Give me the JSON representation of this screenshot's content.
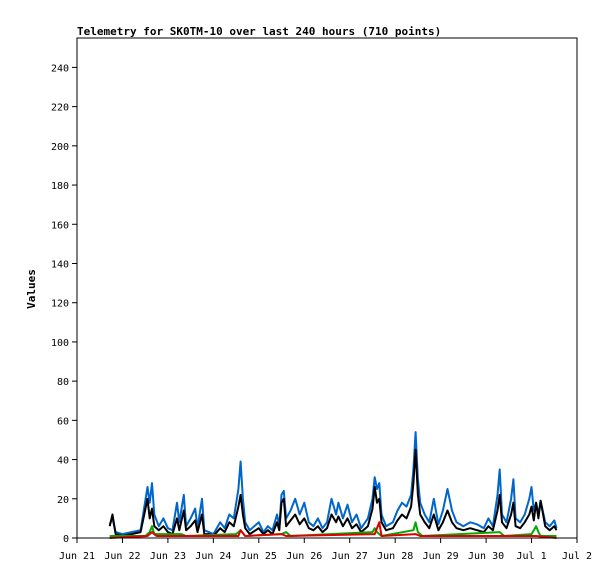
{
  "chart_data": {
    "type": "line",
    "title": "Telemetry for SK0TM-10 over last 240 hours (710 points)",
    "ylabel": "Values",
    "xlabel": "",
    "ylim": [
      0,
      255
    ],
    "yticks": [
      0,
      20,
      40,
      60,
      80,
      100,
      120,
      140,
      160,
      180,
      200,
      220,
      240
    ],
    "x_tick_labels": [
      "Jun 21",
      "Jun 22",
      "Jun 23",
      "Jun 24",
      "Jun 25",
      "Jun 26",
      "Jun 27",
      "Jun 28",
      "Jun 29",
      "Jun 30",
      "Jul 1",
      "Jul 2"
    ],
    "xlim_days": [
      0,
      11
    ],
    "grid": false,
    "legend": "none",
    "series": [
      {
        "color": "#0066cc",
        "width": 2,
        "points": [
          [
            0.72,
            7
          ],
          [
            0.78,
            10
          ],
          [
            0.85,
            3
          ],
          [
            1.0,
            2
          ],
          [
            1.2,
            3
          ],
          [
            1.4,
            4
          ],
          [
            1.55,
            26
          ],
          [
            1.6,
            18
          ],
          [
            1.65,
            28
          ],
          [
            1.7,
            12
          ],
          [
            1.8,
            6
          ],
          [
            1.9,
            10
          ],
          [
            2.0,
            5
          ],
          [
            2.1,
            4
          ],
          [
            2.2,
            18
          ],
          [
            2.25,
            8
          ],
          [
            2.35,
            22
          ],
          [
            2.4,
            6
          ],
          [
            2.5,
            10
          ],
          [
            2.6,
            15
          ],
          [
            2.65,
            5
          ],
          [
            2.75,
            20
          ],
          [
            2.8,
            4
          ],
          [
            2.9,
            3
          ],
          [
            3.0,
            2
          ],
          [
            3.15,
            8
          ],
          [
            3.25,
            5
          ],
          [
            3.35,
            12
          ],
          [
            3.45,
            10
          ],
          [
            3.55,
            25
          ],
          [
            3.6,
            39
          ],
          [
            3.65,
            20
          ],
          [
            3.7,
            8
          ],
          [
            3.8,
            4
          ],
          [
            4.0,
            8
          ],
          [
            4.1,
            3
          ],
          [
            4.2,
            6
          ],
          [
            4.3,
            4
          ],
          [
            4.4,
            12
          ],
          [
            4.45,
            6
          ],
          [
            4.5,
            22
          ],
          [
            4.55,
            24
          ],
          [
            4.6,
            10
          ],
          [
            4.7,
            14
          ],
          [
            4.8,
            20
          ],
          [
            4.9,
            12
          ],
          [
            5.0,
            18
          ],
          [
            5.1,
            8
          ],
          [
            5.2,
            6
          ],
          [
            5.3,
            10
          ],
          [
            5.4,
            5
          ],
          [
            5.5,
            8
          ],
          [
            5.6,
            20
          ],
          [
            5.7,
            12
          ],
          [
            5.75,
            18
          ],
          [
            5.85,
            10
          ],
          [
            5.95,
            17
          ],
          [
            6.05,
            8
          ],
          [
            6.15,
            12
          ],
          [
            6.25,
            5
          ],
          [
            6.4,
            10
          ],
          [
            6.5,
            20
          ],
          [
            6.55,
            31
          ],
          [
            6.6,
            25
          ],
          [
            6.65,
            28
          ],
          [
            6.7,
            12
          ],
          [
            6.8,
            6
          ],
          [
            6.95,
            8
          ],
          [
            7.05,
            14
          ],
          [
            7.15,
            18
          ],
          [
            7.25,
            16
          ],
          [
            7.35,
            22
          ],
          [
            7.4,
            35
          ],
          [
            7.45,
            54
          ],
          [
            7.5,
            30
          ],
          [
            7.55,
            18
          ],
          [
            7.65,
            12
          ],
          [
            7.75,
            8
          ],
          [
            7.85,
            20
          ],
          [
            7.95,
            7
          ],
          [
            8.05,
            14
          ],
          [
            8.15,
            25
          ],
          [
            8.25,
            14
          ],
          [
            8.35,
            8
          ],
          [
            8.5,
            6
          ],
          [
            8.65,
            8
          ],
          [
            8.8,
            7
          ],
          [
            8.95,
            5
          ],
          [
            9.05,
            10
          ],
          [
            9.15,
            6
          ],
          [
            9.25,
            22
          ],
          [
            9.3,
            35
          ],
          [
            9.35,
            12
          ],
          [
            9.45,
            8
          ],
          [
            9.55,
            20
          ],
          [
            9.6,
            30
          ],
          [
            9.65,
            10
          ],
          [
            9.75,
            8
          ],
          [
            9.85,
            12
          ],
          [
            9.95,
            20
          ],
          [
            10.0,
            26
          ],
          [
            10.05,
            14
          ],
          [
            10.1,
            18
          ],
          [
            10.15,
            12
          ],
          [
            10.2,
            19
          ],
          [
            10.3,
            8
          ],
          [
            10.4,
            6
          ],
          [
            10.5,
            9
          ],
          [
            10.55,
            5
          ]
        ]
      },
      {
        "color": "#000000",
        "width": 2,
        "points": [
          [
            0.72,
            6
          ],
          [
            0.78,
            12
          ],
          [
            0.85,
            2
          ],
          [
            1.0,
            1
          ],
          [
            1.2,
            2
          ],
          [
            1.4,
            3
          ],
          [
            1.55,
            20
          ],
          [
            1.6,
            10
          ],
          [
            1.65,
            15
          ],
          [
            1.7,
            6
          ],
          [
            1.8,
            4
          ],
          [
            1.9,
            6
          ],
          [
            2.0,
            3
          ],
          [
            2.1,
            2
          ],
          [
            2.2,
            10
          ],
          [
            2.25,
            4
          ],
          [
            2.35,
            14
          ],
          [
            2.4,
            4
          ],
          [
            2.5,
            6
          ],
          [
            2.6,
            9
          ],
          [
            2.65,
            3
          ],
          [
            2.75,
            12
          ],
          [
            2.8,
            2
          ],
          [
            2.9,
            2
          ],
          [
            3.0,
            1
          ],
          [
            3.15,
            5
          ],
          [
            3.25,
            3
          ],
          [
            3.35,
            8
          ],
          [
            3.45,
            6
          ],
          [
            3.55,
            16
          ],
          [
            3.6,
            22
          ],
          [
            3.65,
            12
          ],
          [
            3.7,
            5
          ],
          [
            3.8,
            2
          ],
          [
            4.0,
            5
          ],
          [
            4.1,
            2
          ],
          [
            4.2,
            4
          ],
          [
            4.3,
            2
          ],
          [
            4.4,
            8
          ],
          [
            4.45,
            4
          ],
          [
            4.5,
            18
          ],
          [
            4.55,
            20
          ],
          [
            4.6,
            6
          ],
          [
            4.7,
            9
          ],
          [
            4.8,
            12
          ],
          [
            4.9,
            7
          ],
          [
            5.0,
            10
          ],
          [
            5.1,
            5
          ],
          [
            5.2,
            4
          ],
          [
            5.3,
            6
          ],
          [
            5.4,
            3
          ],
          [
            5.5,
            5
          ],
          [
            5.6,
            12
          ],
          [
            5.7,
            8
          ],
          [
            5.75,
            11
          ],
          [
            5.85,
            6
          ],
          [
            5.95,
            10
          ],
          [
            6.05,
            5
          ],
          [
            6.15,
            7
          ],
          [
            6.25,
            3
          ],
          [
            6.4,
            6
          ],
          [
            6.5,
            15
          ],
          [
            6.55,
            26
          ],
          [
            6.6,
            18
          ],
          [
            6.65,
            20
          ],
          [
            6.7,
            8
          ],
          [
            6.8,
            4
          ],
          [
            6.95,
            5
          ],
          [
            7.05,
            9
          ],
          [
            7.15,
            12
          ],
          [
            7.25,
            10
          ],
          [
            7.35,
            16
          ],
          [
            7.4,
            28
          ],
          [
            7.45,
            45
          ],
          [
            7.5,
            22
          ],
          [
            7.55,
            12
          ],
          [
            7.65,
            8
          ],
          [
            7.75,
            5
          ],
          [
            7.85,
            12
          ],
          [
            7.95,
            4
          ],
          [
            8.05,
            8
          ],
          [
            8.15,
            14
          ],
          [
            8.25,
            8
          ],
          [
            8.35,
            5
          ],
          [
            8.5,
            4
          ],
          [
            8.65,
            5
          ],
          [
            8.8,
            4
          ],
          [
            8.95,
            3
          ],
          [
            9.05,
            6
          ],
          [
            9.15,
            4
          ],
          [
            9.25,
            14
          ],
          [
            9.3,
            22
          ],
          [
            9.35,
            8
          ],
          [
            9.45,
            5
          ],
          [
            9.55,
            12
          ],
          [
            9.6,
            18
          ],
          [
            9.65,
            6
          ],
          [
            9.75,
            5
          ],
          [
            9.85,
            8
          ],
          [
            9.95,
            12
          ],
          [
            10.0,
            16
          ],
          [
            10.05,
            9
          ],
          [
            10.1,
            18
          ],
          [
            10.15,
            10
          ],
          [
            10.2,
            19
          ],
          [
            10.3,
            6
          ],
          [
            10.4,
            4
          ],
          [
            10.5,
            6
          ],
          [
            10.55,
            4
          ]
        ]
      },
      {
        "color": "#00aa00",
        "width": 2,
        "points": [
          [
            0.72,
            1
          ],
          [
            1.5,
            1
          ],
          [
            1.6,
            3
          ],
          [
            1.65,
            6
          ],
          [
            1.7,
            2
          ],
          [
            2.3,
            2
          ],
          [
            2.4,
            1
          ],
          [
            3.5,
            2
          ],
          [
            3.6,
            4
          ],
          [
            3.7,
            1
          ],
          [
            4.5,
            2
          ],
          [
            4.6,
            3
          ],
          [
            4.7,
            1
          ],
          [
            6.5,
            3
          ],
          [
            6.55,
            5
          ],
          [
            6.6,
            3
          ],
          [
            6.7,
            1
          ],
          [
            7.4,
            4
          ],
          [
            7.45,
            8
          ],
          [
            7.5,
            3
          ],
          [
            7.6,
            1
          ],
          [
            9.3,
            3
          ],
          [
            9.4,
            1
          ],
          [
            10.0,
            2
          ],
          [
            10.1,
            6
          ],
          [
            10.15,
            3
          ],
          [
            10.2,
            1
          ],
          [
            10.55,
            1
          ]
        ]
      },
      {
        "color": "#dd0000",
        "width": 2,
        "points": [
          [
            0.72,
            0
          ],
          [
            1.55,
            1
          ],
          [
            1.65,
            3
          ],
          [
            1.75,
            1
          ],
          [
            3.55,
            1
          ],
          [
            3.6,
            4
          ],
          [
            3.7,
            1
          ],
          [
            4.5,
            2
          ],
          [
            4.6,
            1
          ],
          [
            6.55,
            2
          ],
          [
            6.65,
            8
          ],
          [
            6.7,
            1
          ],
          [
            7.45,
            2
          ],
          [
            7.55,
            1
          ],
          [
            9.3,
            1
          ],
          [
            10.1,
            1
          ],
          [
            10.55,
            0
          ]
        ]
      },
      {
        "color": "#7700aa",
        "width": 1,
        "points": [
          [
            0.72,
            0
          ],
          [
            10.55,
            0
          ]
        ]
      }
    ]
  }
}
